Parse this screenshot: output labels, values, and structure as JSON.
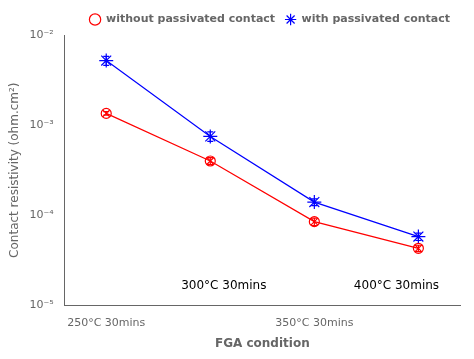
{
  "chart_data": {
    "type": "line",
    "xlabel": "FGA condition",
    "ylabel": "Contact resistivity (ohm.cm²)",
    "x": [
      1,
      2,
      3,
      4
    ],
    "xlim": [
      0.6,
      4.4
    ],
    "xticks": [
      {
        "value": 1,
        "label": "250°C 30mins"
      },
      {
        "value": 3,
        "label": "350°C 30mins"
      }
    ],
    "ylim": [
      1e-05,
      0.01
    ],
    "yticks": [
      {
        "value": 1e-05,
        "label": "10⁻⁵"
      },
      {
        "value": 0.0001,
        "label": "10⁻⁴"
      },
      {
        "value": 0.001,
        "label": "10⁻³"
      },
      {
        "value": 0.01,
        "label": "10⁻²"
      }
    ],
    "log": "y",
    "grid": false,
    "legend": "upper right",
    "series": [
      {
        "name": "without passivated contact",
        "color": "#ff0000",
        "marker": "otimes",
        "line_style": "solid",
        "values": [
          0.00135,
          0.0004,
          8.5e-05,
          4.3e-05
        ],
        "yerr_lo": [
          6e-05,
          3.5e-05,
          8e-06,
          3.5e-06
        ],
        "yerr_hi": [
          6e-05,
          3.5e-05,
          8e-06,
          3.5e-06
        ]
      },
      {
        "name": "with passivated contact",
        "color": "#0000ff",
        "marker": "star",
        "line_style": "solid",
        "values": [
          0.0052,
          0.00075,
          0.00014,
          5.8e-05
        ],
        "yerr_lo": [
          0.0006,
          9e-05,
          1.2e-05,
          5.5e-06
        ],
        "yerr_hi": [
          0.0006,
          9e-05,
          1.2e-05,
          5.5e-06
        ]
      }
    ],
    "annotations": [
      {
        "text": "300°C 30mins",
        "x": 1.72,
        "y": 1.4e-05
      },
      {
        "text": "400°C 30mins",
        "x": 3.38,
        "y": 1.4e-05
      }
    ]
  }
}
